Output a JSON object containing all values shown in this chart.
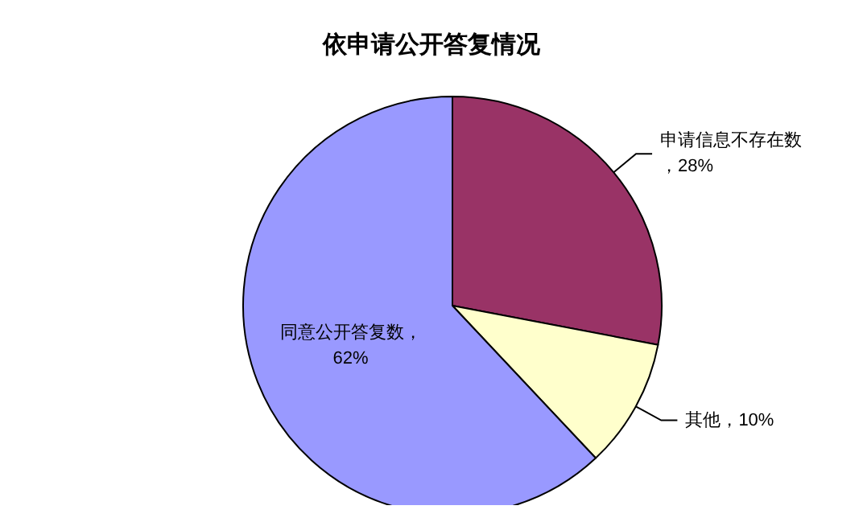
{
  "chart_data": {
    "type": "pie",
    "title": "依申请公开答复情况",
    "categories": [
      "申请信息不存在数",
      "其他",
      "同意公开答复数"
    ],
    "values": [
      28,
      10,
      62
    ],
    "colors": [
      "#993366",
      "#ffffcc",
      "#9999ff"
    ],
    "value_labels": [
      "，28%",
      "，10%",
      "，62%"
    ],
    "legend": false
  }
}
